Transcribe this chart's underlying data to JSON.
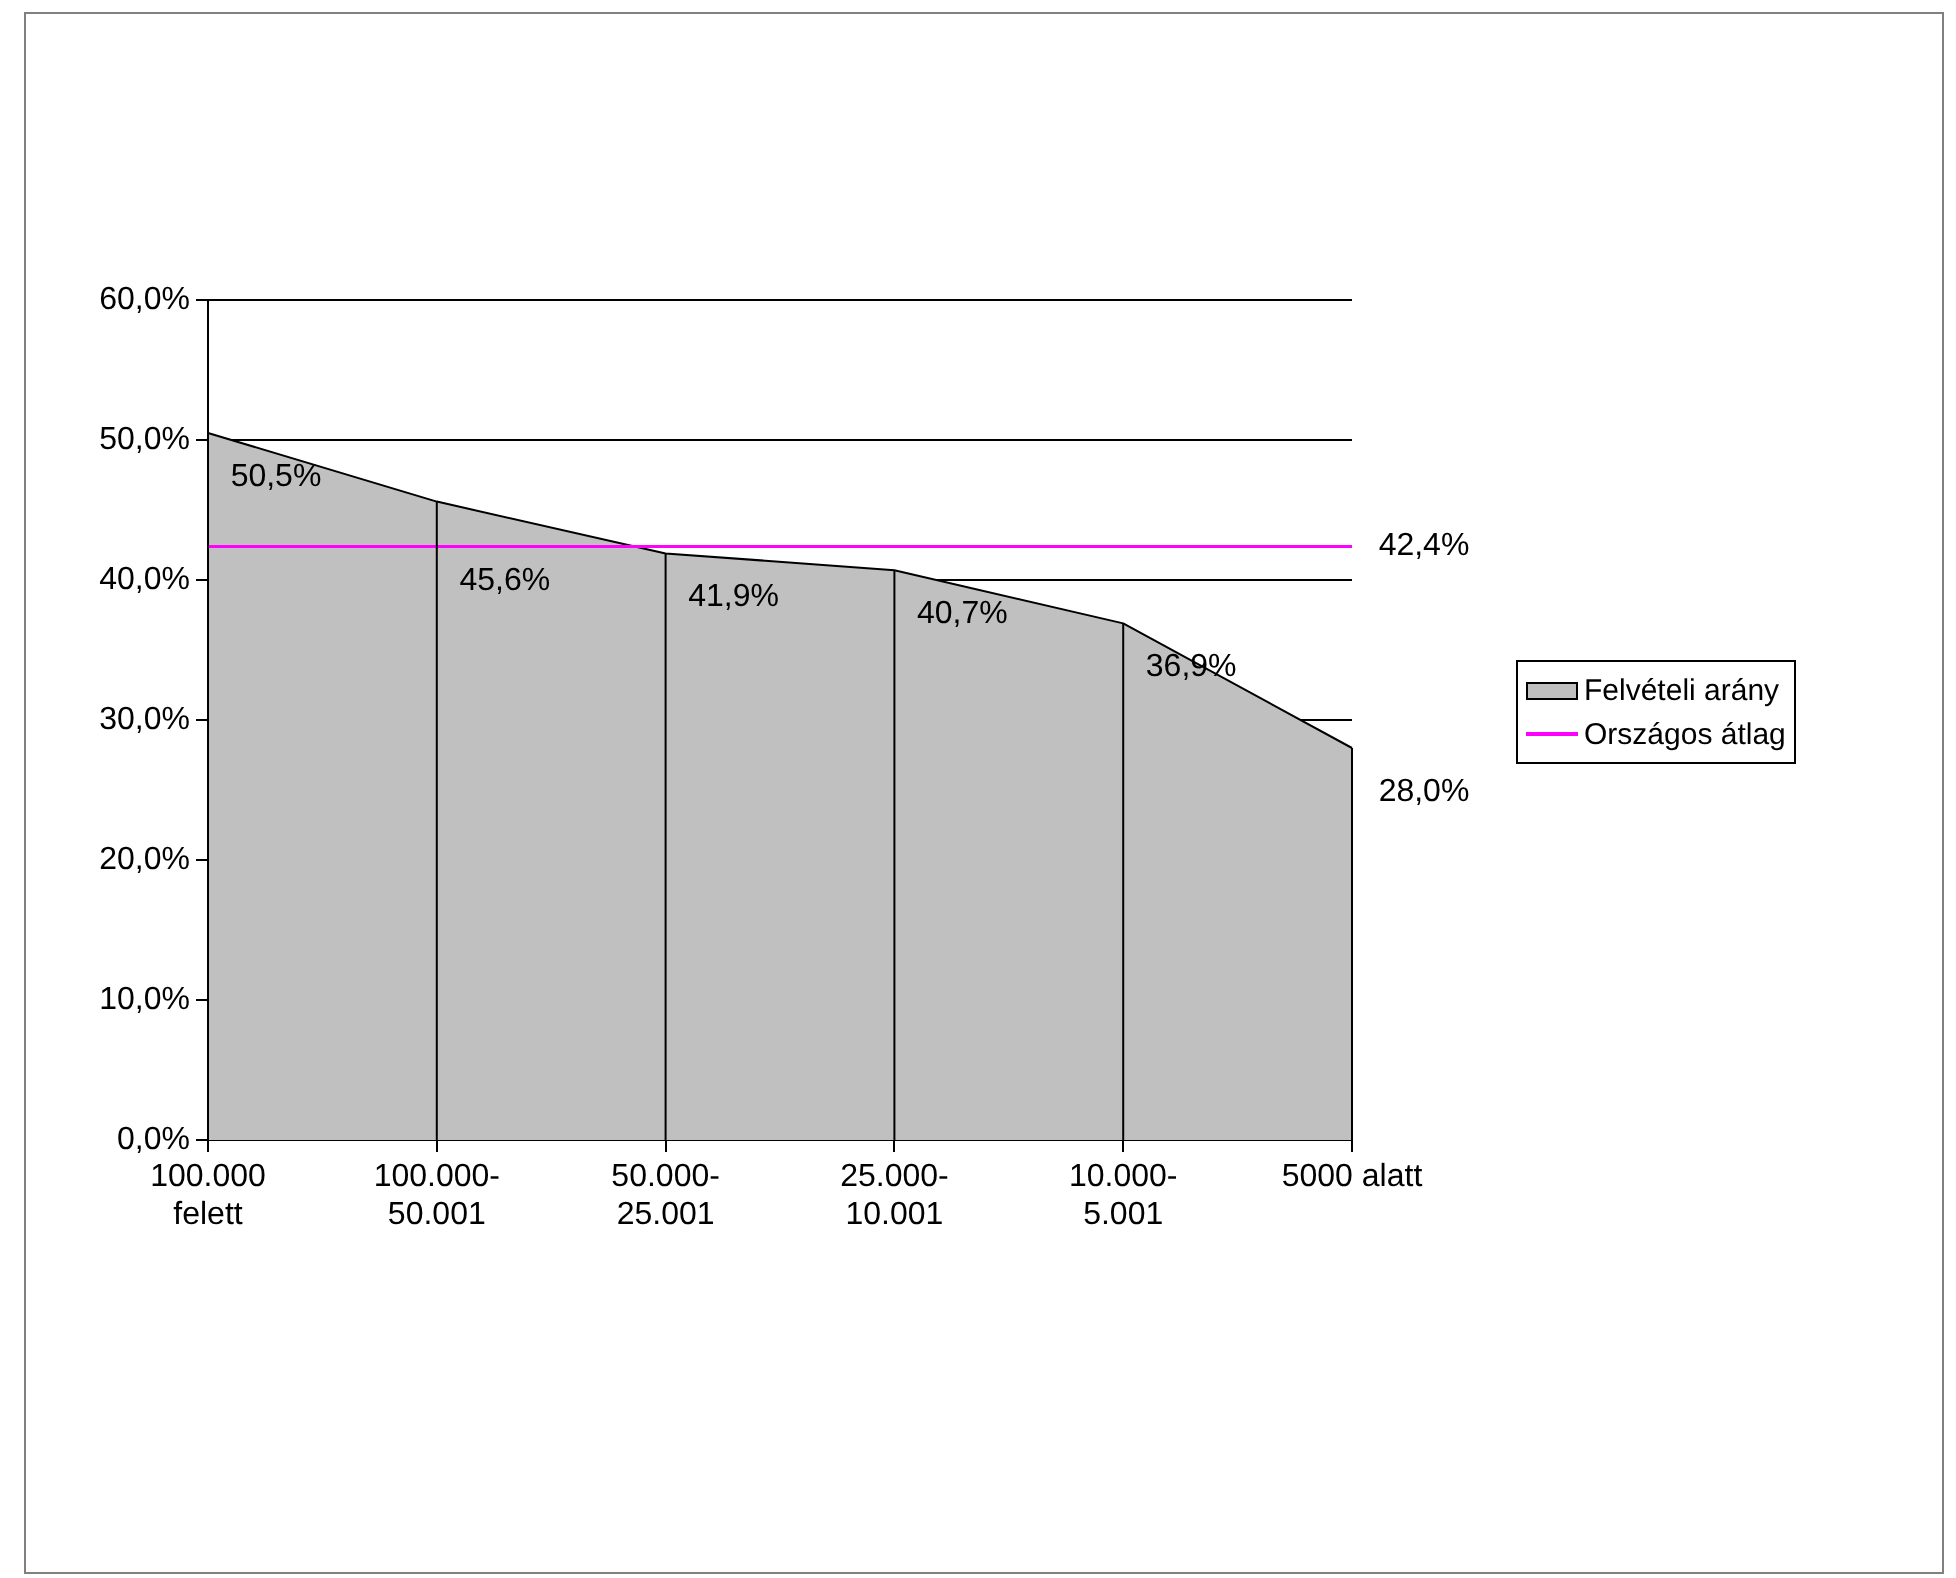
{
  "chart_data": {
    "type": "area",
    "categories": [
      "100.000 felett",
      "100.000-50.001",
      "50.000-25.001",
      "25.000-10.001",
      "10.000-5.001",
      "5000 alatt"
    ],
    "series": [
      {
        "name": "Felvételi arány",
        "color": "#c0c0c0",
        "values": [
          50.5,
          45.6,
          41.9,
          40.7,
          36.9,
          28.0
        ],
        "value_labels": [
          "50,5%",
          "45,6%",
          "41,9%",
          "40,7%",
          "36,9%",
          "28,0%"
        ]
      },
      {
        "name": "Országos átlag",
        "type": "line",
        "color": "#ff00ff",
        "values": [
          42.4,
          42.4,
          42.4,
          42.4,
          42.4,
          42.4
        ],
        "value_labels": [
          null,
          null,
          null,
          null,
          null,
          "42,4%"
        ]
      }
    ],
    "ylim": [
      0,
      60
    ],
    "yticks": [
      {
        "value": 0,
        "label": "0,0%"
      },
      {
        "value": 10,
        "label": "10,0%"
      },
      {
        "value": 20,
        "label": "20,0%"
      },
      {
        "value": 30,
        "label": "30,0%"
      },
      {
        "value": 40,
        "label": "40,0%"
      },
      {
        "value": 50,
        "label": "50,0%"
      },
      {
        "value": 60,
        "label": "60,0%"
      }
    ],
    "grid": true,
    "legend": "right",
    "marker": "none"
  }
}
